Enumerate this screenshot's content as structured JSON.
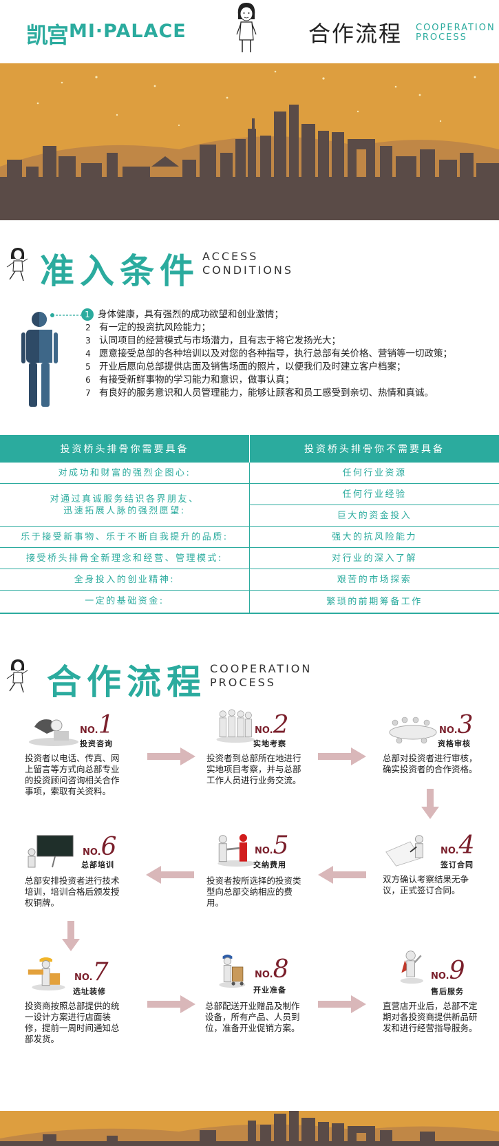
{
  "header": {
    "logo_cn": "凯宫",
    "logo_en": "MI·PALACE",
    "title": "合作流程",
    "subtitle_line1": "COOPERATION",
    "subtitle_line2": "PROCESS"
  },
  "colors": {
    "accent": "#2bab9e",
    "banner_sky": "#dd9e3f",
    "banner_city": "#5a4b47",
    "step_number": "#7a1f2b",
    "arrow": "#d9b7b9"
  },
  "access": {
    "title": "准入条件",
    "sub_line1": "ACCESS",
    "sub_line2": "CONDITIONS",
    "items": [
      {
        "num": "1",
        "text": "身体健康，具有强烈的成功欲望和创业激情；"
      },
      {
        "num": "2",
        "text": "有一定的投资抗风险能力；"
      },
      {
        "num": "3",
        "text": "认同项目的经营模式与市场潜力，且有志于将它发扬光大；"
      },
      {
        "num": "4",
        "text": "愿意接受总部的各种培训以及对您的各种指导，执行总部有关价格、营销等一切政策；"
      },
      {
        "num": "5",
        "text": "开业后愿向总部提供店面及销售场面的照片，以便我们及时建立客户档案；"
      },
      {
        "num": "6",
        "text": "有接受新鲜事物的学习能力和意识，做事认真；"
      },
      {
        "num": "7",
        "text": "有良好的服务意识和人员管理能力，能够让顾客和员工感受到亲切、热情和真诚。"
      }
    ]
  },
  "table": {
    "head_left": "投资桥头排骨你需要具备",
    "head_right": "投资桥头排骨你不需要具备",
    "left": [
      "对成功和财富的强烈企图心:",
      "对通过真诚服务结识各界朋友、\n迅速拓展人脉的强烈愿望:",
      "乐于接受新事物、乐于不断自我提升的品质:",
      "接受桥头排骨全新理念和经营、管理模式:",
      "全身投入的创业精神:",
      "一定的基础资金:"
    ],
    "right": [
      "任何行业资源",
      "任何行业经验",
      "巨大的资金投入",
      "强大的抗风险能力",
      "对行业的深入了解",
      "艰苦的市场探索",
      "繁琐的前期筹备工作"
    ]
  },
  "process": {
    "title": "合作流程",
    "sub_line1": "COOPERATION",
    "sub_line2": "PROCESS",
    "no_prefix": "NO.",
    "steps": [
      {
        "num": "1",
        "label": "投资咨询",
        "icon": "phone-consult-icon",
        "text": "投资者以电话、传真、网上留言等方式向总部专业的投资顾问咨询相关合作事项，索取有关资料。"
      },
      {
        "num": "2",
        "label": "实地考察",
        "icon": "team-visit-icon",
        "text": "投资者到总部所在地进行实地项目考察，并与总部工作人员进行业务交流。"
      },
      {
        "num": "3",
        "label": "资格审核",
        "icon": "meeting-table-icon",
        "text": "总部对投资者进行审核，确实投资者的合作资格。"
      },
      {
        "num": "4",
        "label": "签订合同",
        "icon": "sign-contract-icon",
        "text": "双方确认考察结果无争议，正式签订合同。"
      },
      {
        "num": "5",
        "label": "交纳费用",
        "icon": "handshake-icon",
        "text": "投资者按所选择的投资类型向总部交纳相应的费用。"
      },
      {
        "num": "6",
        "label": "总部培训",
        "icon": "blackboard-training-icon",
        "text": "总部安排投资者进行技术培训，培训合格后颁发授权铜牌。"
      },
      {
        "num": "7",
        "label": "选址装修",
        "icon": "construction-worker-icon",
        "text": "投资商按照总部提供的统一设计方案进行店面装修，提前一周时间通知总部发货。"
      },
      {
        "num": "8",
        "label": "开业准备",
        "icon": "delivery-cart-icon",
        "text": "总部配送开业赠品及制作设备，所有产品、人员到位，准备开业促销方案。"
      },
      {
        "num": "9",
        "label": "售后服务",
        "icon": "superhero-service-icon",
        "text": "直营店开业后，总部不定期对各投资商提供新品研发和进行经营指导服务。"
      }
    ]
  }
}
